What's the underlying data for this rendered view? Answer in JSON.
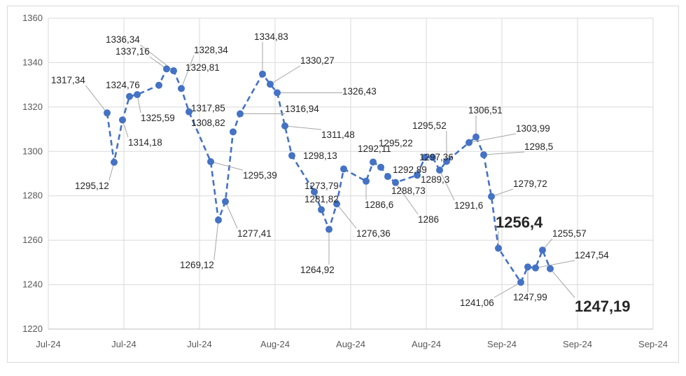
{
  "chart_data": {
    "type": "line",
    "title": "",
    "xlabel": "",
    "ylabel": "",
    "ylim": [
      1220,
      1360
    ],
    "yticks": [
      1220,
      1240,
      1260,
      1280,
      1300,
      1320,
      1340,
      1360
    ],
    "xticks": [
      "Jul-24",
      "Jul-24",
      "Jul-24",
      "Aug-24",
      "Aug-24",
      "Aug-24",
      "Sep-24",
      "Sep-24",
      "Sep-24"
    ],
    "grid": true,
    "legend": "none",
    "line_style": "dashed",
    "color": "#4472c4",
    "series": [
      {
        "values": [
          1317.34,
          1295.12,
          1314.18,
          1324.76,
          1325.59,
          1329.81,
          1337.16,
          1336.34,
          1328.34,
          1317.85,
          1295.39,
          1269.12,
          1277.41,
          1308.82,
          1316.94,
          1334.83,
          1330.27,
          1326.43,
          1311.48,
          1298.13,
          1281.82,
          1273.79,
          1264.92,
          1276.36,
          1292.11,
          1286.6,
          1295.22,
          1292.89,
          1288.73,
          1286,
          1289.3,
          1297.36,
          1297.36,
          1291.6,
          1295.52,
          1303.99,
          1306.51,
          1298.5,
          1279.72,
          1256.4,
          1241.06,
          1247.99,
          1247.54,
          1255.57,
          1247.19
        ],
        "labels": [
          "1317,34",
          "1295,12",
          "1314,18",
          "1324,76",
          "1325,59",
          "1329,81",
          "1337,16",
          "1336,34",
          "1328,34",
          "1317,85",
          "1295,39",
          "1269,12",
          "1277,41",
          "1308,82",
          "1316,94",
          "1334,83",
          "1330,27",
          "1326,43",
          "1311,48",
          "1298,13",
          "1281,82",
          "1273,79",
          "1264,92",
          "1276,36",
          "1292,11",
          "1286,6",
          "1295,22",
          "1292,89",
          "1288,73",
          "1286",
          "1289,3",
          "1297,36",
          "",
          "1291,6",
          "1295,52",
          "1303,99",
          "1306,51",
          "1298,5",
          "1279,72",
          "1256,4",
          "1241,06",
          "1247,99",
          "1247,54",
          "1255,57",
          "1247,19"
        ]
      }
    ]
  }
}
